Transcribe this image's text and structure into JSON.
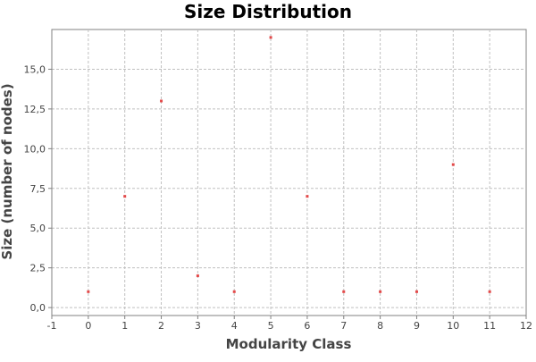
{
  "chart_data": {
    "type": "scatter",
    "title": "Size Distribution",
    "xlabel": "Modularity Class",
    "ylabel": "Size (number of nodes)",
    "xlim": [
      -1,
      12
    ],
    "ylim": [
      -0.5,
      17.5
    ],
    "x_ticks": [
      -1,
      0,
      1,
      2,
      3,
      4,
      5,
      6,
      7,
      8,
      9,
      10,
      11,
      12
    ],
    "x_tick_labels": [
      "-1",
      "0",
      "1",
      "2",
      "3",
      "4",
      "5",
      "6",
      "7",
      "8",
      "9",
      "10",
      "11",
      "12"
    ],
    "y_ticks": [
      0,
      2.5,
      5,
      7.5,
      10,
      12.5,
      15
    ],
    "y_tick_labels": [
      "0,0",
      "2,5",
      "5,0",
      "7,5",
      "10,0",
      "12,5",
      "15,0"
    ],
    "grid": true,
    "point_color": "#e34a4a",
    "series": [
      {
        "x": [
          0,
          1,
          2,
          3,
          4,
          5,
          6,
          7,
          8,
          9,
          10,
          11
        ],
        "y": [
          1,
          7,
          13,
          2,
          1,
          17,
          7,
          1,
          1,
          1,
          9,
          1
        ]
      }
    ]
  }
}
